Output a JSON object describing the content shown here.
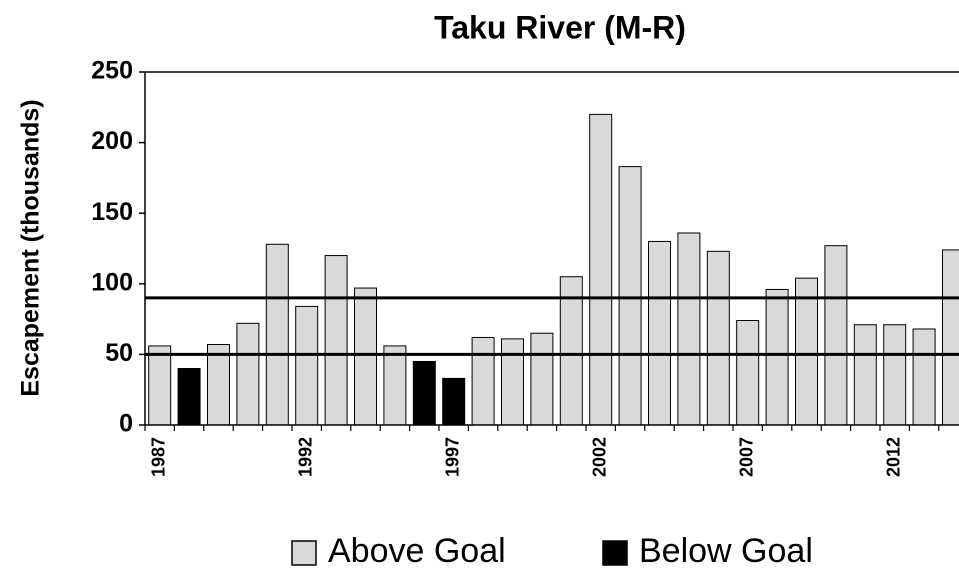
{
  "chart_data": {
    "type": "bar",
    "title": "Taku River (M-R)",
    "y_label": "Escapement (thousands)",
    "categories": [
      "1987",
      null,
      null,
      null,
      null,
      "1992",
      null,
      null,
      null,
      null,
      "1997",
      null,
      null,
      null,
      null,
      "2002",
      null,
      null,
      null,
      null,
      "2007",
      null,
      null,
      null,
      null,
      "2012",
      null,
      null
    ],
    "series": [
      {
        "name": "Above Goal",
        "color": "#d9d9d9",
        "values": [
          56,
          null,
          57,
          72,
          128,
          84,
          120,
          97,
          56,
          null,
          null,
          62,
          61,
          65,
          105,
          220,
          183,
          130,
          136,
          123,
          74,
          96,
          104,
          127,
          71,
          71,
          68,
          124
        ]
      },
      {
        "name": "Below Goal",
        "color": "#000000",
        "values": [
          null,
          40,
          null,
          null,
          null,
          null,
          null,
          null,
          null,
          45,
          33,
          null,
          null,
          null,
          null,
          null,
          null,
          null,
          null,
          null,
          null,
          null,
          null,
          null,
          null,
          null,
          null,
          null
        ]
      }
    ],
    "goal_range": [
      50,
      90
    ],
    "ylim": [
      0,
      250
    ],
    "yticks": [
      0,
      50,
      100,
      150,
      200,
      250
    ]
  }
}
